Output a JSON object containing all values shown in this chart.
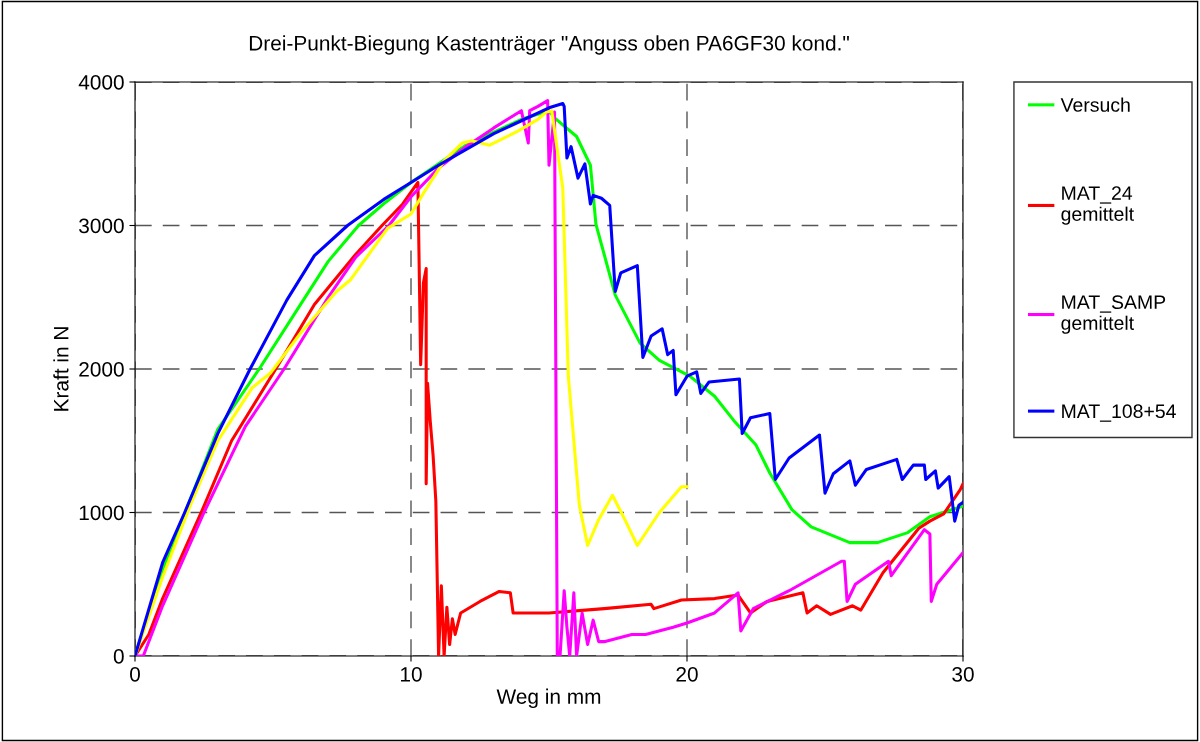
{
  "chart_data": {
    "type": "line",
    "title": "Drei-Punkt-Biegung Kastenträger \"Anguss oben PA6GF30 kond.\"",
    "xlabel": "Weg in mm",
    "ylabel": "Kraft in N",
    "xlim": [
      0,
      30
    ],
    "ylim": [
      0,
      4000
    ],
    "xticks": [
      0,
      10,
      20,
      30
    ],
    "yticks": [
      0,
      1000,
      2000,
      3000,
      4000
    ],
    "grid": true,
    "legend": "right",
    "marker": "none",
    "line_style": "solid",
    "series": [
      {
        "name": "Versuch",
        "color": "#00ff00",
        "x": [
          0,
          1,
          3,
          4.5,
          6,
          7,
          8.1,
          9,
          10,
          11,
          12,
          13,
          14,
          15,
          15.2,
          16,
          16.5,
          16.7,
          17.4,
          18.3,
          19,
          20.1,
          21,
          21.7,
          22.5,
          23,
          23.8,
          24.5,
          25.9,
          26.9,
          28,
          28.8,
          30
        ],
        "values": [
          0,
          600,
          1580,
          2000,
          2450,
          2750,
          3000,
          3150,
          3300,
          3430,
          3560,
          3650,
          3740,
          3800,
          3750,
          3620,
          3420,
          3010,
          2515,
          2180,
          2060,
          1950,
          1810,
          1640,
          1470,
          1275,
          1020,
          900,
          790,
          790,
          860,
          970,
          1045
        ]
      },
      {
        "name": "MAT_24\ngemittelt",
        "color": "#ff0000",
        "x": [
          0,
          0.5,
          1,
          2.4,
          3.5,
          5.1,
          6.5,
          8,
          8.95,
          9.7,
          10.25,
          10.35,
          10.45,
          10.55,
          10.55,
          10.6,
          10.7,
          10.8,
          10.9,
          11.0,
          11.1,
          11.2,
          11.3,
          11.4,
          11.5,
          11.6,
          11.8,
          12.5,
          13.2,
          13.6,
          13.7,
          15,
          17,
          18.7,
          18.8,
          19.8,
          21,
          21.85,
          22.3,
          22.9,
          24.2,
          24.35,
          24.7,
          25.2,
          26,
          26.3,
          27.1,
          28.4,
          28.8,
          29.3,
          29.9,
          30
        ],
        "values": [
          0,
          150,
          400,
          1000,
          1500,
          2000,
          2450,
          2800,
          3000,
          3150,
          3300,
          2030,
          2600,
          2700,
          1200,
          1900,
          1630,
          1400,
          1080,
          0,
          490,
          0,
          340,
          80,
          260,
          150,
          300,
          380,
          450,
          440,
          300,
          300,
          330,
          360,
          330,
          390,
          400,
          425,
          300,
          380,
          440,
          300,
          350,
          290,
          350,
          320,
          580,
          890,
          940,
          990,
          1160,
          1200
        ]
      },
      {
        "name": "MAT_SAMP\ngemittelt",
        "color": "#ff00ff",
        "x": [
          0,
          0.3,
          1,
          2.5,
          4,
          5.4,
          7,
          8,
          9.2,
          10,
          11,
          12,
          13,
          14,
          14.25,
          14.3,
          14.6,
          14.95,
          15.0,
          15.2,
          15.3,
          15.4,
          15.55,
          15.65,
          15.75,
          15.9,
          16.0,
          16.2,
          16.4,
          16.6,
          16.8,
          17,
          18,
          18.5,
          19.5,
          20,
          21,
          21.85,
          21.95,
          22.4,
          23.7,
          25.6,
          25.7,
          25.8,
          26.1,
          27.3,
          27.4,
          28.6,
          28.8,
          28.85,
          29.05,
          30
        ],
        "values": [
          0,
          0,
          350,
          1000,
          1600,
          2000,
          2500,
          2780,
          3000,
          3200,
          3400,
          3550,
          3680,
          3800,
          3575,
          3800,
          3830,
          3870,
          3420,
          3790,
          0,
          0,
          455,
          200,
          0,
          440,
          0,
          300,
          80,
          250,
          100,
          100,
          150,
          150,
          200,
          230,
          300,
          440,
          175,
          330,
          455,
          660,
          660,
          380,
          500,
          660,
          560,
          880,
          850,
          380,
          500,
          720
        ]
      },
      {
        "color": "#ffff00",
        "x": [
          0,
          1,
          2,
          3,
          4.25,
          4.9,
          6,
          7.3,
          7.8,
          9.15,
          10,
          10.5,
          11.2,
          11.85,
          12.2,
          12.85,
          13.8,
          14.6,
          14.9,
          15.1,
          15.5,
          15.7,
          16.1,
          16.4,
          16.8,
          17.3,
          17.75,
          18.2,
          19,
          19.8,
          20
        ],
        "values": [
          0,
          550,
          1050,
          1500,
          1870,
          1970,
          2250,
          2540,
          2620,
          2980,
          3080,
          3240,
          3450,
          3575,
          3590,
          3560,
          3650,
          3740,
          3790,
          3800,
          3260,
          1950,
          1050,
          770,
          950,
          1120,
          950,
          770,
          1000,
          1180,
          1180
        ]
      },
      {
        "name": "MAT_108+54",
        "color": "#0000ff",
        "x": [
          0,
          1,
          1.8,
          3,
          4.17,
          5.5,
          6.5,
          7.7,
          9,
          10,
          11,
          12,
          13,
          14,
          15,
          15.5,
          15.55,
          15.65,
          15.8,
          16.05,
          16.3,
          16.5,
          16.6,
          16.9,
          17.2,
          17.4,
          17.6,
          18.2,
          18.4,
          18.7,
          19.1,
          19.3,
          19.5,
          19.6,
          20.0,
          20.35,
          20.5,
          20.8,
          21.9,
          22.0,
          22.3,
          23.0,
          23.2,
          23.7,
          24.8,
          25.0,
          25.3,
          25.9,
          26.1,
          26.5,
          27.6,
          27.8,
          28.2,
          28.6,
          28.65,
          29.0,
          29.1,
          29.5,
          29.7,
          29.85,
          30
        ],
        "values": [
          0,
          650,
          1000,
          1550,
          2000,
          2480,
          2790,
          3000,
          3180,
          3300,
          3420,
          3530,
          3640,
          3730,
          3820,
          3850,
          3830,
          3470,
          3550,
          3330,
          3430,
          3150,
          3210,
          3190,
          3140,
          2540,
          2670,
          2720,
          2080,
          2230,
          2280,
          2100,
          2130,
          1820,
          1950,
          1980,
          1830,
          1910,
          1930,
          1550,
          1660,
          1690,
          1230,
          1380,
          1540,
          1135,
          1270,
          1360,
          1190,
          1300,
          1370,
          1230,
          1330,
          1330,
          1230,
          1290,
          1170,
          1250,
          940,
          1050,
          1070
        ]
      }
    ]
  }
}
